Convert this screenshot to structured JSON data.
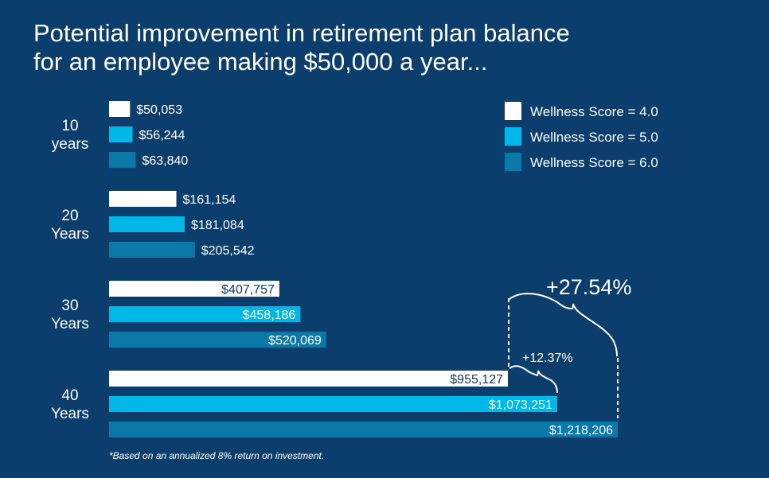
{
  "chart_data": {
    "type": "bar",
    "orientation": "horizontal",
    "title": "Potential improvement in retirement plan balance",
    "subtitle": "for an employee making $50,000 a year...",
    "categories": [
      [
        "10",
        "years"
      ],
      [
        "20",
        "Years"
      ],
      [
        "30",
        "Years"
      ],
      [
        "40",
        "Years"
      ]
    ],
    "series": [
      {
        "name": "Wellness Score = 4.0",
        "color": "#ffffff",
        "values": [
          50053,
          161154,
          407757,
          955127
        ],
        "labels": [
          "$50,053",
          "$161,154",
          "$407,757",
          "$955,127"
        ]
      },
      {
        "name": "Wellness Score = 5.0",
        "color": "#00b8e8",
        "values": [
          56244,
          181084,
          458186,
          1073251
        ],
        "labels": [
          "$56,244",
          "$181,084",
          "$458,186",
          "$1,073,251"
        ]
      },
      {
        "name": "Wellness Score = 6.0",
        "color": "#0a79a8",
        "values": [
          63840,
          205542,
          520069,
          1218206
        ],
        "labels": [
          "$63,840",
          "$205,542",
          "$520,069",
          "$1,218,206"
        ]
      }
    ],
    "annotations": [
      "+12.37%",
      "+27.54%"
    ],
    "footnote": "*Based on an annualized 8% return on investment.",
    "legend": "top-right",
    "grid": false,
    "xlim": [
      0,
      1218206
    ]
  },
  "colors": {
    "background": "#0b3e6c",
    "dark_text": "#0b3e6c"
  }
}
